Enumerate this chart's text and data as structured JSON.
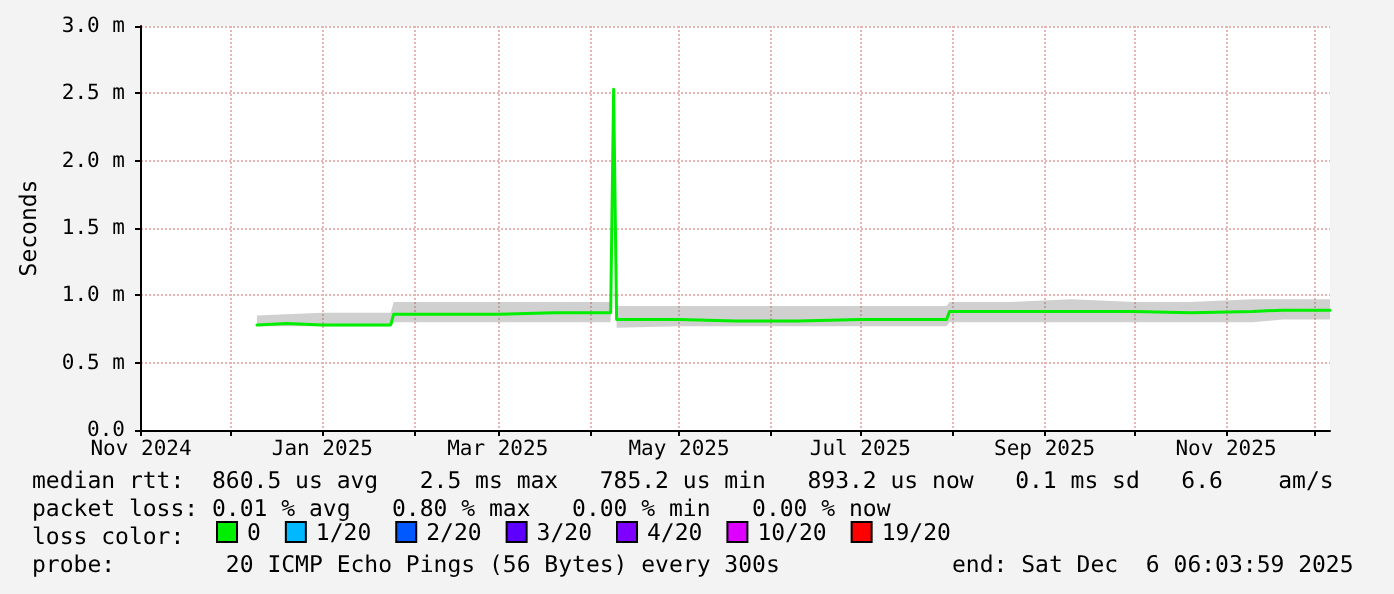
{
  "chart_data": {
    "type": "line",
    "ylabel": "Seconds",
    "x": [
      "2024-12-10",
      "2024-12-20",
      "2025-01-01",
      "2025-01-15",
      "2025-01-24",
      "2025-01-25",
      "2025-02-10",
      "2025-03-01",
      "2025-03-20",
      "2025-04-08",
      "2025-04-09",
      "2025-04-10",
      "2025-05-01",
      "2025-05-20",
      "2025-06-10",
      "2025-07-01",
      "2025-07-30",
      "2025-07-31",
      "2025-08-20",
      "2025-09-10",
      "2025-10-01",
      "2025-10-20",
      "2025-11-10",
      "2025-11-20",
      "2025-12-06"
    ],
    "series": [
      {
        "name": "0",
        "color": "#00ee00",
        "values": [
          0.78,
          0.79,
          0.78,
          0.78,
          0.78,
          0.86,
          0.86,
          0.86,
          0.87,
          0.87,
          2.53,
          0.82,
          0.82,
          0.81,
          0.81,
          0.82,
          0.82,
          0.88,
          0.88,
          0.88,
          0.88,
          0.87,
          0.88,
          0.89,
          0.89
        ],
        "lower": [
          0.77,
          0.77,
          0.77,
          0.77,
          0.77,
          0.8,
          0.8,
          0.8,
          0.8,
          0.8,
          2.53,
          0.76,
          0.77,
          0.77,
          0.77,
          0.77,
          0.77,
          0.8,
          0.8,
          0.8,
          0.8,
          0.8,
          0.8,
          0.82,
          0.82
        ],
        "upper": [
          0.85,
          0.86,
          0.87,
          0.87,
          0.87,
          0.95,
          0.95,
          0.95,
          0.95,
          0.95,
          2.53,
          0.92,
          0.92,
          0.92,
          0.92,
          0.92,
          0.92,
          0.95,
          0.95,
          0.97,
          0.95,
          0.95,
          0.97,
          0.97,
          0.97
        ]
      },
      {
        "name": "1/20",
        "color": "#00b8ff",
        "values": [
          null,
          null,
          null,
          null,
          null,
          null,
          null,
          null,
          null,
          null,
          null,
          null,
          null,
          null,
          null,
          null,
          null,
          null,
          null,
          null,
          null,
          null,
          null,
          null,
          null
        ]
      },
      {
        "name": "2/20",
        "color": "#0059ff",
        "values": [
          null,
          null,
          null,
          null,
          null,
          null,
          null,
          null,
          null,
          null,
          null,
          null,
          null,
          null,
          null,
          null,
          null,
          null,
          null,
          null,
          null,
          null,
          null,
          null,
          null
        ]
      },
      {
        "name": "3/20",
        "color": "#5e00ff",
        "values": [
          null,
          null,
          null,
          null,
          null,
          null,
          null,
          null,
          null,
          null,
          null,
          null,
          null,
          null,
          null,
          null,
          null,
          null,
          null,
          null,
          null,
          null,
          null,
          null,
          null
        ]
      },
      {
        "name": "4/20",
        "color": "#7e00ff",
        "values": [
          null,
          null,
          null,
          null,
          null,
          null,
          null,
          null,
          null,
          null,
          null,
          null,
          null,
          null,
          null,
          null,
          null,
          null,
          null,
          null,
          null,
          null,
          null,
          null,
          null
        ]
      },
      {
        "name": "10/20",
        "color": "#dd00ff",
        "values": [
          null,
          null,
          null,
          null,
          null,
          null,
          null,
          null,
          null,
          null,
          null,
          null,
          null,
          null,
          null,
          null,
          null,
          null,
          null,
          null,
          null,
          null,
          null,
          null,
          null
        ]
      },
      {
        "name": "19/20",
        "color": "#ff0000",
        "values": [
          null,
          null,
          null,
          null,
          null,
          null,
          null,
          null,
          null,
          null,
          null,
          null,
          null,
          null,
          null,
          null,
          null,
          null,
          null,
          null,
          null,
          null,
          null,
          null,
          null
        ]
      }
    ],
    "xlim": [
      "2024-11-01",
      "2025-12-06"
    ],
    "xticks": [
      {
        "value": "2024-11-01",
        "label": "Nov 2024"
      },
      {
        "value": "2024-12-01",
        "label": null
      },
      {
        "value": "2025-01-01",
        "label": "Jan 2025"
      },
      {
        "value": "2025-02-01",
        "label": null
      },
      {
        "value": "2025-03-01",
        "label": "Mar 2025"
      },
      {
        "value": "2025-04-01",
        "label": null
      },
      {
        "value": "2025-05-01",
        "label": "May 2025"
      },
      {
        "value": "2025-06-01",
        "label": null
      },
      {
        "value": "2025-07-01",
        "label": "Jul 2025"
      },
      {
        "value": "2025-08-01",
        "label": null
      },
      {
        "value": "2025-09-01",
        "label": "Sep 2025"
      },
      {
        "value": "2025-10-01",
        "label": null
      },
      {
        "value": "2025-11-01",
        "label": "Nov 2025"
      },
      {
        "value": "2025-12-01",
        "label": null
      }
    ],
    "ylim": [
      0,
      3
    ],
    "yticks": [
      {
        "value": 0,
        "label": "0.0"
      },
      {
        "value": 0.5,
        "label": "0.5 m"
      },
      {
        "value": 1,
        "label": "1.0 m"
      },
      {
        "value": 1.5,
        "label": "1.5 m"
      },
      {
        "value": 2,
        "label": "2.0 m"
      },
      {
        "value": 2.5,
        "label": "2.5 m"
      },
      {
        "value": 3,
        "label": "3.0 m"
      }
    ],
    "grid": true,
    "legend": "bottom",
    "marker": "none",
    "line_style": "solid",
    "annotations": [
      "median rtt:  860.5 us avg   2.5 ms max   785.2 us min   893.2 us now   0.1 ms sd   6.6    am/s",
      "packet loss: 0.01 % avg   0.80 % max   0.00 % min   0.00 % now",
      "loss color:",
      "probe:        20 ICMP Echo Pings (56 Bytes) every 300s",
      "end: Sat Dec  6 06:03:59 2025"
    ]
  }
}
